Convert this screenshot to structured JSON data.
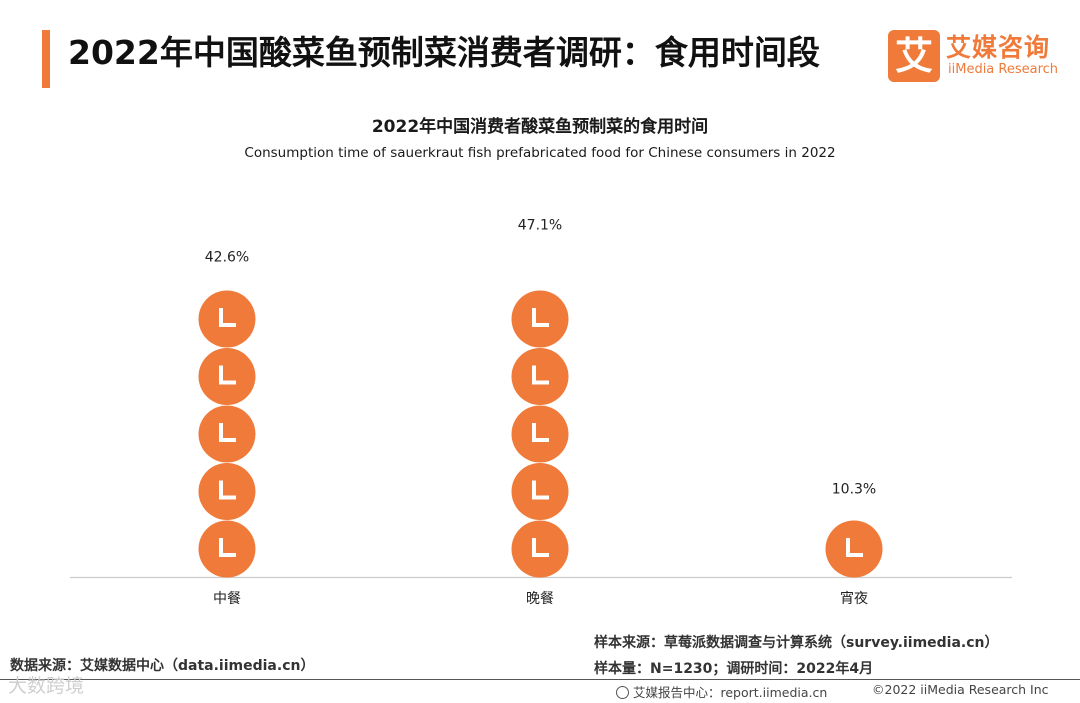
{
  "header": {
    "title": "2022年中国酸菜鱼预制菜消费者调研：食用时间段",
    "logo_mark": "艾",
    "logo_cn": "艾媒咨询",
    "logo_en": "iiMedia Research",
    "accent_color": "#ef7a3a"
  },
  "chart_data": {
    "type": "bar",
    "style": "pictogram",
    "icon": "clock-icon",
    "title": "2022年中国消费者酸菜鱼预制菜的食用时间",
    "subtitle": "Consumption time of sauerkraut fish prefabricated food for Chinese consumers in 2022",
    "categories": [
      "中餐",
      "晚餐",
      "宵夜"
    ],
    "values": [
      42.6,
      47.1,
      10.3
    ],
    "value_labels": [
      "42.6%",
      "47.1%",
      "10.3%"
    ],
    "unit": "%",
    "icon_unit": 8,
    "color": "#ef7a3a",
    "grid": false,
    "legend": "none"
  },
  "footer": {
    "data_source": "数据来源：艾媒数据中心（data.iimedia.cn）",
    "sample_source": "样本来源：草莓派数据调查与计算系统（survey.iimedia.cn）",
    "sample_size": "样本量：N=1230；调研时间：2022年4月",
    "report_center": "艾媒报告中心：report.iimedia.cn",
    "copyright": "©2022 iiMedia Research Inc",
    "watermark": "大数跨境"
  }
}
